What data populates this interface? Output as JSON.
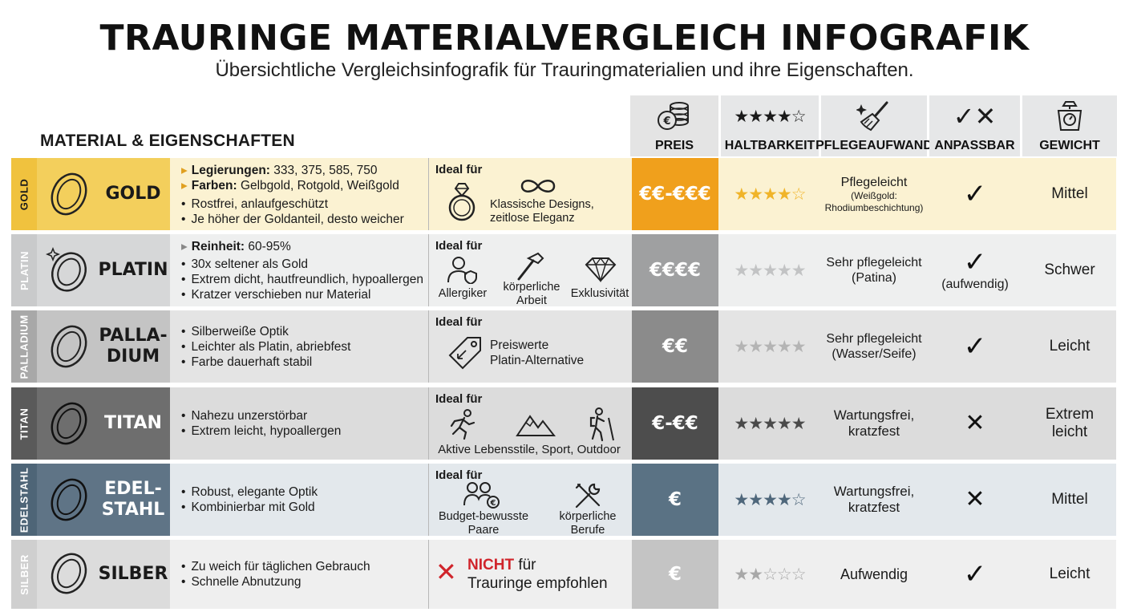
{
  "title": "TRAURINGE MATERIALVERGLEICH INFOGRAFIK",
  "subtitle": "Übersichtliche Vergleichsinfografik für Trauringmaterialien und ihre Eigenschaften.",
  "material_header": "MATERIAL & EIGENSCHAFTEN",
  "columns": {
    "preis": "PREIS",
    "haltbarkeit": "HALTBARKEIT",
    "pflegeaufwand": "PFLEGEAUFWAND",
    "anpassbar": "ANPASSBAR",
    "gewicht": "GEWICHT",
    "header_icons": [
      "coins-icon",
      "four-stars-icon",
      "cleaning-brush-icon",
      "check-cross-icon",
      "scale-icon"
    ]
  },
  "ideal_label": "Ideal für",
  "rows": [
    {
      "side": "GOLD",
      "name": "GOLD",
      "props": {
        "legierungen_label": "Legierungen:",
        "legierungen": "333, 375, 585, 750",
        "farben_label": "Farben:",
        "farben": "Gelbgold, Rotgold, Weißgold",
        "b1": "Rostfrei, anlaufgeschützt",
        "b2": "Je höher der Goldanteil, desto weicher"
      },
      "ideal": {
        "text1": "Klassische Designs,",
        "text2": "zeitlose Eleganz",
        "icons": [
          "diamond-ring-icon",
          "infinity-icon"
        ]
      },
      "preis": "€€-€€€",
      "stars": "★★★★☆",
      "pflege": {
        "main": "Pflegeleicht",
        "sub1": "(Weißgold:",
        "sub2": "Rhodiumbeschichtung)"
      },
      "anpassbar": "✓",
      "gewicht": "Mittel",
      "colors": {
        "bg": "#fbf2d2",
        "side": "#f0c23e",
        "ring": "#f3cf5c",
        "preis": "#f0a01c",
        "stars": "#f0b429"
      }
    },
    {
      "side": "PLATIN",
      "name": "PLATIN",
      "props": {
        "reinheit_label": "Reinheit:",
        "reinheit": "60-95%",
        "b1": "30x seltener als Gold",
        "b2": "Extrem dicht, hautfreundlich, hypoallergen",
        "b3": "Kratzer verschieben nur Material"
      },
      "ideal": {
        "l1": "Allergiker",
        "l2a": "körperliche",
        "l2b": "Arbeit",
        "l3": "Exklusivität",
        "icons": [
          "person-shield-icon",
          "hammer-icon",
          "diamond-icon"
        ]
      },
      "preis": "€€€€",
      "stars": "★★★★★",
      "pflege": {
        "main1": "Sehr pflegeleicht",
        "main2": "(Patina)"
      },
      "anpassbar": "✓",
      "anpassbar_note": "(aufwendig)",
      "gewicht": "Schwer",
      "colors": {
        "bg": "#eeefef",
        "side": "#c9cacb",
        "ring": "#d6d7d8",
        "preis": "#9fa0a1",
        "stars": "#c2c3c4"
      }
    },
    {
      "side": "PALLADIUM",
      "name1": "PALLA-",
      "name2": "DIUM",
      "props": {
        "b1": "Silberweiße Optik",
        "b2": "Leichter als Platin, abriebfest",
        "b3": "Farbe dauerhaft stabil"
      },
      "ideal": {
        "text1": "Preiswerte",
        "text2": "Platin-Alternative",
        "icons": [
          "price-tag-icon"
        ]
      },
      "preis": "€€",
      "stars": "★★★★★",
      "pflege": {
        "main1": "Sehr pflegeleicht",
        "main2": "(Wasser/Seife)"
      },
      "anpassbar": "✓",
      "gewicht": "Leicht",
      "colors": {
        "bg": "#e4e4e4",
        "side": "#a8a8a8",
        "ring": "#c4c4c4",
        "preis": "#8b8b8b",
        "stars": "#b4b4b4"
      }
    },
    {
      "side": "TITAN",
      "name": "TITAN",
      "props": {
        "b1": "Nahezu unzerstörbar",
        "b2": "Extrem leicht, hypoallergen"
      },
      "ideal": {
        "text": "Aktive Lebensstile, Sport, Outdoor",
        "icons": [
          "runner-icon",
          "mountains-icon",
          "hiker-icon"
        ]
      },
      "preis": "€-€€",
      "stars": "★★★★★",
      "pflege": {
        "main1": "Wartungsfrei,",
        "main2": "kratzfest"
      },
      "anpassbar": "✕",
      "gewicht1": "Extrem",
      "gewicht2": "leicht",
      "colors": {
        "bg": "#dcdcdc",
        "side": "#5a5a5a",
        "ring": "#6e6e6e",
        "preis": "#4d4d4d",
        "stars": "#4a4a4a"
      }
    },
    {
      "side": "EDELSTAHL",
      "name1": "EDEL-",
      "name2": "STAHL",
      "props": {
        "b1": "Robust, elegante Optik",
        "b2": "Kombinierbar mit Gold"
      },
      "ideal": {
        "l1a": "Budget-bewusste",
        "l1b": "Paare",
        "l2a": "körperliche",
        "l2b": "Berufe",
        "icons": [
          "couple-euro-icon",
          "tools-icon"
        ]
      },
      "preis": "€",
      "stars": "★★★★☆",
      "pflege": {
        "main1": "Wartungsfrei,",
        "main2": "kratzfest"
      },
      "anpassbar": "✕",
      "gewicht": "Mittel",
      "colors": {
        "bg": "#e3e8ec",
        "side": "#4e6577",
        "ring": "#5f7486",
        "preis": "#5a7284",
        "stars": "#4f677b"
      }
    },
    {
      "side": "SILBER",
      "name": "SILBER",
      "props": {
        "b1": "Zu weich für täglichen Gebrauch",
        "b2": "Schnelle Abnutzung"
      },
      "ideal": {
        "nicht": "NICHT",
        "fuer": " für",
        "line2": "Trauringe empfohlen",
        "icons": [
          "red-cross-icon"
        ]
      },
      "preis": "€",
      "stars": "★★☆☆☆",
      "pflege": {
        "main": "Aufwendig"
      },
      "anpassbar": "✓",
      "gewicht": "Leicht",
      "colors": {
        "bg": "#efefef",
        "side": "#cfcfcf",
        "ring": "#dcdcdc",
        "preis": "#c4c4c4",
        "stars": "#a8a8a8"
      }
    }
  ]
}
